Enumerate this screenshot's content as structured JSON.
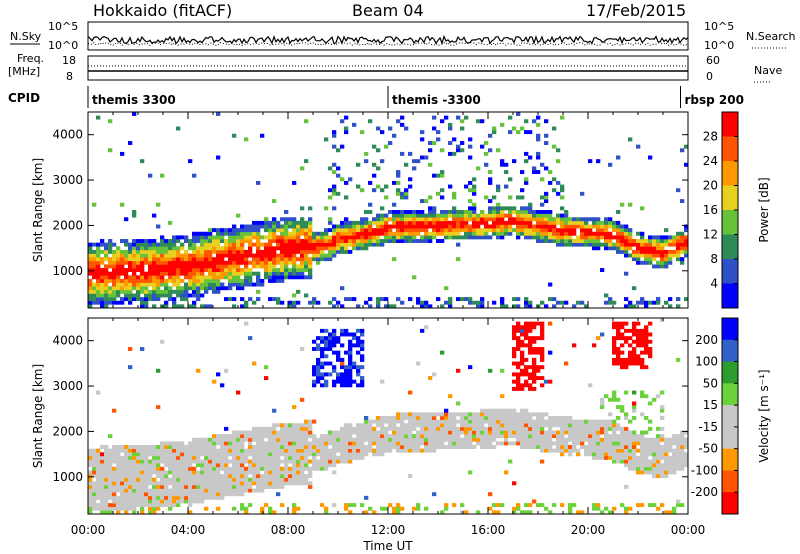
{
  "header": {
    "station": "Hokkaido (fitACF)",
    "beam": "Beam 04",
    "date": "17/Feb/2015"
  },
  "status_panels": {
    "nsky_label": "N.Sky",
    "nsearch_label": "N.Search",
    "freq_label": "Freq.",
    "freq_unit": "[MHz]",
    "nave_label": "Nave",
    "cpid_label": "CPID",
    "noise_ticks": [
      "10^5",
      "10^0"
    ],
    "noise_ticks_right": [
      "10^5",
      "10^0"
    ],
    "freq_ticks": [
      "18",
      "8"
    ],
    "nave_ticks": [
      "60",
      "0"
    ]
  },
  "cpid_segments": [
    {
      "label": "themis 3300",
      "start": 0.0
    },
    {
      "label": "themis -3300",
      "start": 12.0
    },
    {
      "label": "rbsp 200",
      "start": 23.7
    }
  ],
  "colors": {
    "power_scale": [
      "#0000ff",
      "#3050c8",
      "#2e8b57",
      "#66c23a",
      "#e8d020",
      "#ff9900",
      "#ff5500",
      "#ff0000"
    ],
    "velocity_scale": [
      "#ff0000",
      "#ff5500",
      "#ff9900",
      "#c8c8c8",
      "#c8c8c8",
      "#6cd23c",
      "#2e9b2e",
      "#3060c8",
      "#0000ff"
    ]
  },
  "chart_data": [
    {
      "type": "heatmap",
      "panel": "power",
      "xlabel": "",
      "ylabel": "Slant Range [km]",
      "xlim": [
        0,
        24
      ],
      "ylim": [
        180,
        4500
      ],
      "yticks": [
        "1000",
        "2000",
        "3000",
        "4000"
      ],
      "colorbar_label": "Power [dB]",
      "colorbar_ticks": [
        "4",
        "8",
        "12",
        "16",
        "20",
        "24",
        "28"
      ],
      "colorbar_range": [
        0,
        30
      ],
      "echo_band": {
        "center_km": [
          [
            0,
            950
          ],
          [
            2,
            1000
          ],
          [
            4,
            1100
          ],
          [
            6,
            1300
          ],
          [
            8,
            1500
          ],
          [
            9.5,
            1550
          ],
          [
            10,
            1700
          ],
          [
            11,
            1800
          ],
          [
            12,
            1950
          ],
          [
            14,
            2000
          ],
          [
            16,
            2050
          ],
          [
            17,
            2100
          ],
          [
            18,
            2000
          ],
          [
            19,
            1900
          ],
          [
            20,
            1850
          ],
          [
            21,
            1800
          ],
          [
            22,
            1500
          ],
          [
            23,
            1400
          ],
          [
            24,
            1650
          ]
        ],
        "peak_power_db": 28
      }
    },
    {
      "type": "heatmap",
      "panel": "velocity",
      "xlabel": "Time UT",
      "ylabel": "Slant Range [km]",
      "xlim": [
        0,
        24
      ],
      "ylim": [
        180,
        4500
      ],
      "xticks": [
        "00:00",
        "04:00",
        "08:00",
        "12:00",
        "16:00",
        "20:00",
        "00:00"
      ],
      "yticks": [
        "1000",
        "2000",
        "3000",
        "4000"
      ],
      "colorbar_label": "Velocity [m s⁻¹]",
      "colorbar_ticks": [
        "200",
        "100",
        "50",
        "15",
        "-15",
        "-50",
        "-100",
        "-200"
      ],
      "colorbar_range": [
        -250,
        250
      ]
    }
  ]
}
